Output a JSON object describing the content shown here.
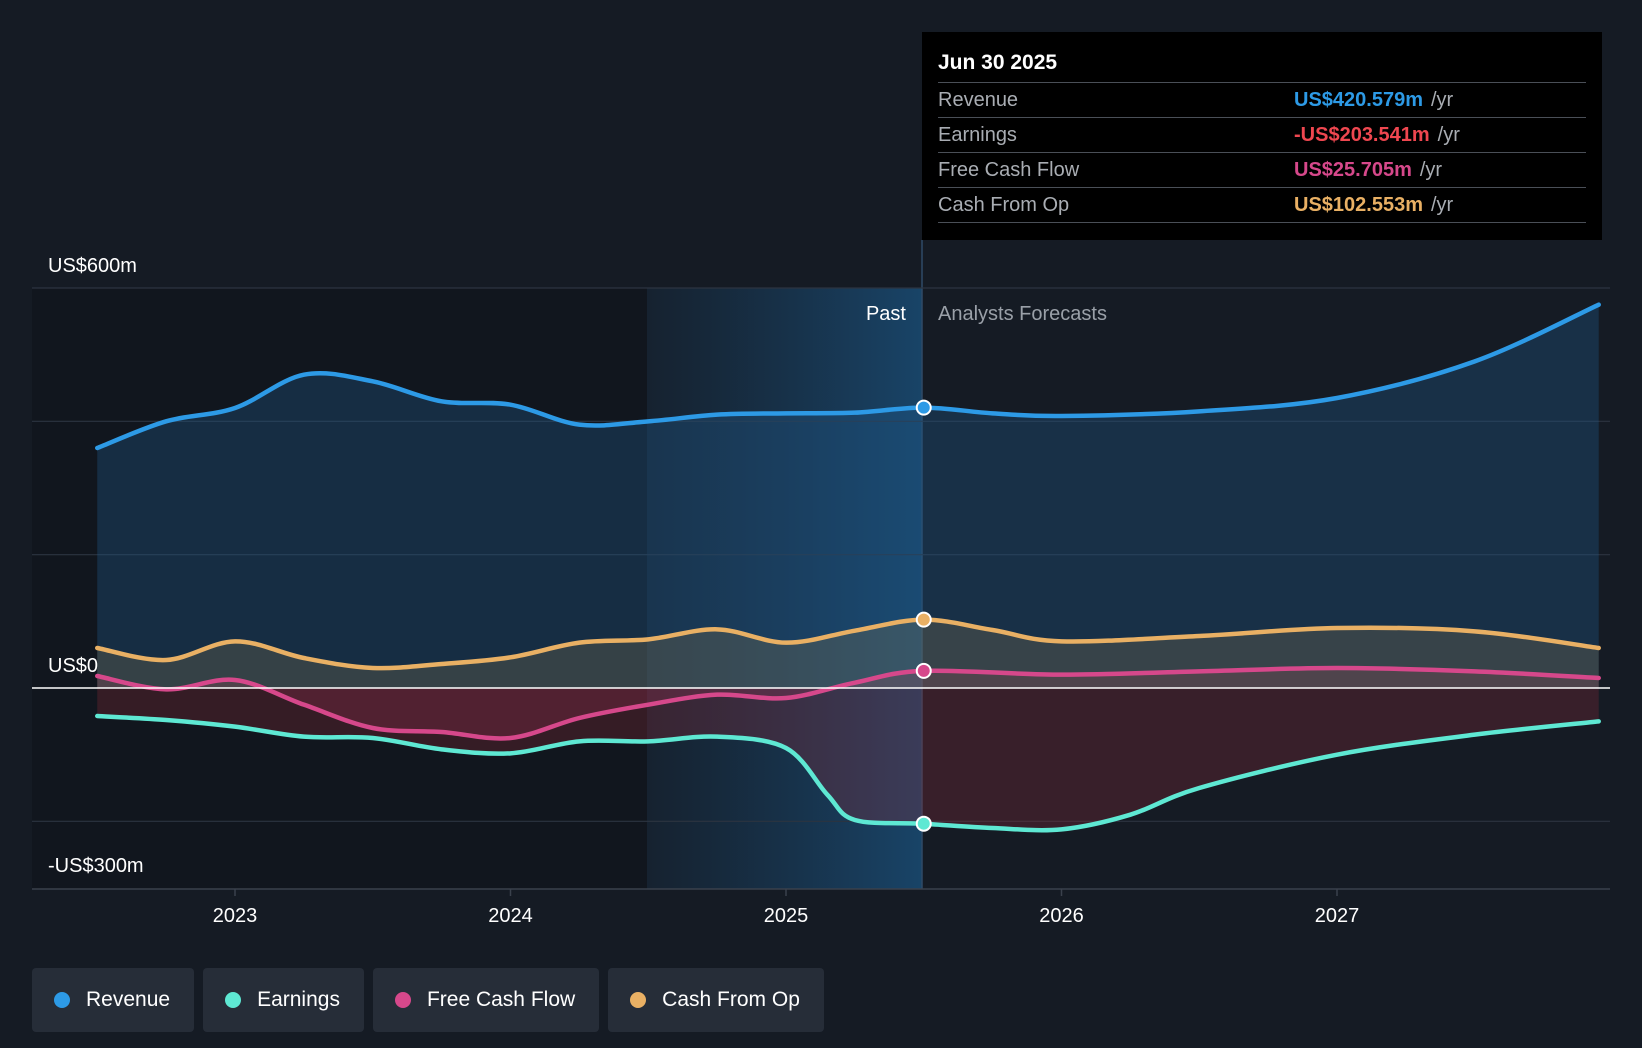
{
  "chart_data": {
    "type": "line",
    "x_ticks": [
      "2023",
      "2024",
      "2025",
      "2026",
      "2027"
    ],
    "y_labels": {
      "top": "US$600m",
      "zero": "US$0",
      "bottom": "-US$300m"
    },
    "ylim": [
      -300,
      600
    ],
    "grid": true,
    "regions": {
      "past_label": "Past",
      "forecast_label": "Analysts Forecasts"
    },
    "series": [
      {
        "name": "Revenue",
        "color": "#2d9ae6",
        "points": [
          [
            2022.5,
            360
          ],
          [
            2022.75,
            400
          ],
          [
            2023.0,
            420
          ],
          [
            2023.25,
            470
          ],
          [
            2023.5,
            460
          ],
          [
            2023.75,
            430
          ],
          [
            2024.0,
            425
          ],
          [
            2024.25,
            395
          ],
          [
            2024.5,
            400
          ],
          [
            2024.75,
            410
          ],
          [
            2025.0,
            412
          ],
          [
            2025.25,
            413
          ],
          [
            2025.5,
            420.579
          ],
          [
            2025.75,
            412
          ],
          [
            2026.0,
            408
          ],
          [
            2026.5,
            415
          ],
          [
            2027.0,
            435
          ],
          [
            2027.5,
            490
          ],
          [
            2027.95,
            575
          ]
        ]
      },
      {
        "name": "Earnings",
        "color": "#5ee8d3",
        "points": [
          [
            2022.5,
            -42
          ],
          [
            2022.75,
            -48
          ],
          [
            2023.0,
            -58
          ],
          [
            2023.25,
            -73
          ],
          [
            2023.5,
            -75
          ],
          [
            2023.75,
            -92
          ],
          [
            2024.0,
            -98
          ],
          [
            2024.25,
            -80
          ],
          [
            2024.5,
            -80
          ],
          [
            2024.75,
            -73
          ],
          [
            2025.0,
            -90
          ],
          [
            2025.15,
            -160
          ],
          [
            2025.25,
            -198
          ],
          [
            2025.5,
            -203.541
          ],
          [
            2025.75,
            -210
          ],
          [
            2026.0,
            -212
          ],
          [
            2026.25,
            -190
          ],
          [
            2026.5,
            -150
          ],
          [
            2027.0,
            -100
          ],
          [
            2027.5,
            -70
          ],
          [
            2027.95,
            -50
          ]
        ]
      },
      {
        "name": "Free Cash Flow",
        "color": "#d6488b",
        "points": [
          [
            2022.5,
            18
          ],
          [
            2022.75,
            -2
          ],
          [
            2023.0,
            12
          ],
          [
            2023.25,
            -25
          ],
          [
            2023.5,
            -60
          ],
          [
            2023.75,
            -66
          ],
          [
            2024.0,
            -75
          ],
          [
            2024.25,
            -45
          ],
          [
            2024.5,
            -25
          ],
          [
            2024.75,
            -10
          ],
          [
            2025.0,
            -15
          ],
          [
            2025.25,
            8
          ],
          [
            2025.5,
            25.705
          ],
          [
            2026.0,
            20
          ],
          [
            2026.5,
            25
          ],
          [
            2027.0,
            30
          ],
          [
            2027.5,
            25
          ],
          [
            2027.95,
            15
          ]
        ]
      },
      {
        "name": "Cash From Op",
        "color": "#e9b064",
        "points": [
          [
            2022.5,
            60
          ],
          [
            2022.75,
            42
          ],
          [
            2023.0,
            70
          ],
          [
            2023.25,
            45
          ],
          [
            2023.5,
            30
          ],
          [
            2023.75,
            36
          ],
          [
            2024.0,
            46
          ],
          [
            2024.25,
            68
          ],
          [
            2024.5,
            73
          ],
          [
            2024.75,
            88
          ],
          [
            2025.0,
            68
          ],
          [
            2025.25,
            86
          ],
          [
            2025.5,
            102.553
          ],
          [
            2025.75,
            87
          ],
          [
            2026.0,
            70
          ],
          [
            2026.5,
            78
          ],
          [
            2027.0,
            90
          ],
          [
            2027.5,
            85
          ],
          [
            2027.95,
            60
          ]
        ]
      }
    ]
  },
  "tooltip": {
    "date": "Jun 30 2025",
    "rows": [
      {
        "name": "Revenue",
        "value": "US$420.579m",
        "unit": "/yr",
        "color": "#2d9ae6"
      },
      {
        "name": "Earnings",
        "value": "-US$203.541m",
        "unit": "/yr",
        "color": "#ef4750"
      },
      {
        "name": "Free Cash Flow",
        "value": "US$25.705m",
        "unit": "/yr",
        "color": "#d6488b"
      },
      {
        "name": "Cash From Op",
        "value": "US$102.553m",
        "unit": "/yr",
        "color": "#e9b064"
      }
    ]
  },
  "legend": [
    {
      "label": "Revenue",
      "color": "#2d9ae6"
    },
    {
      "label": "Earnings",
      "color": "#5ee8d3"
    },
    {
      "label": "Free Cash Flow",
      "color": "#d6488b"
    },
    {
      "label": "Cash From Op",
      "color": "#e9b064"
    }
  ]
}
